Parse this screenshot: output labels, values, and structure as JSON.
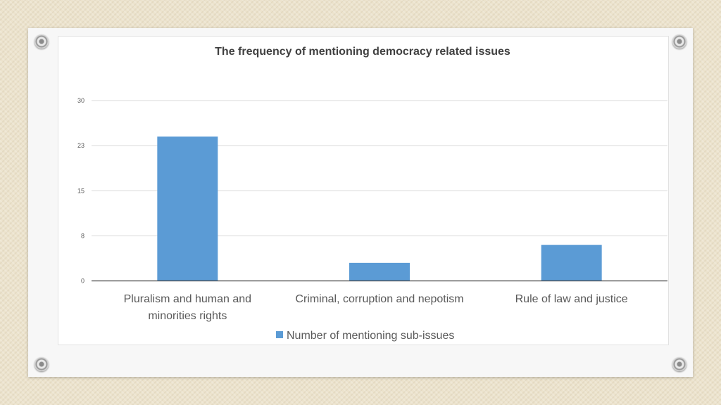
{
  "chart_data": {
    "type": "bar",
    "title": "The frequency of mentioning democracy related issues",
    "categories": [
      [
        "Pluralism and human and",
        "minorities rights"
      ],
      [
        "Criminal, corruption and nepotism"
      ],
      [
        "Rule of law and justice"
      ]
    ],
    "series": [
      {
        "name": "Number of mentioning sub-issues",
        "values": [
          24,
          3,
          6
        ]
      }
    ],
    "yticks": [
      "0",
      "8",
      "15",
      "23",
      "30"
    ],
    "ylim": [
      0,
      30
    ],
    "grid": true,
    "legend": "bottom",
    "colors": {
      "bar": "#5b9bd5",
      "grid": "#d9d9d9",
      "axis": "#404040"
    }
  }
}
